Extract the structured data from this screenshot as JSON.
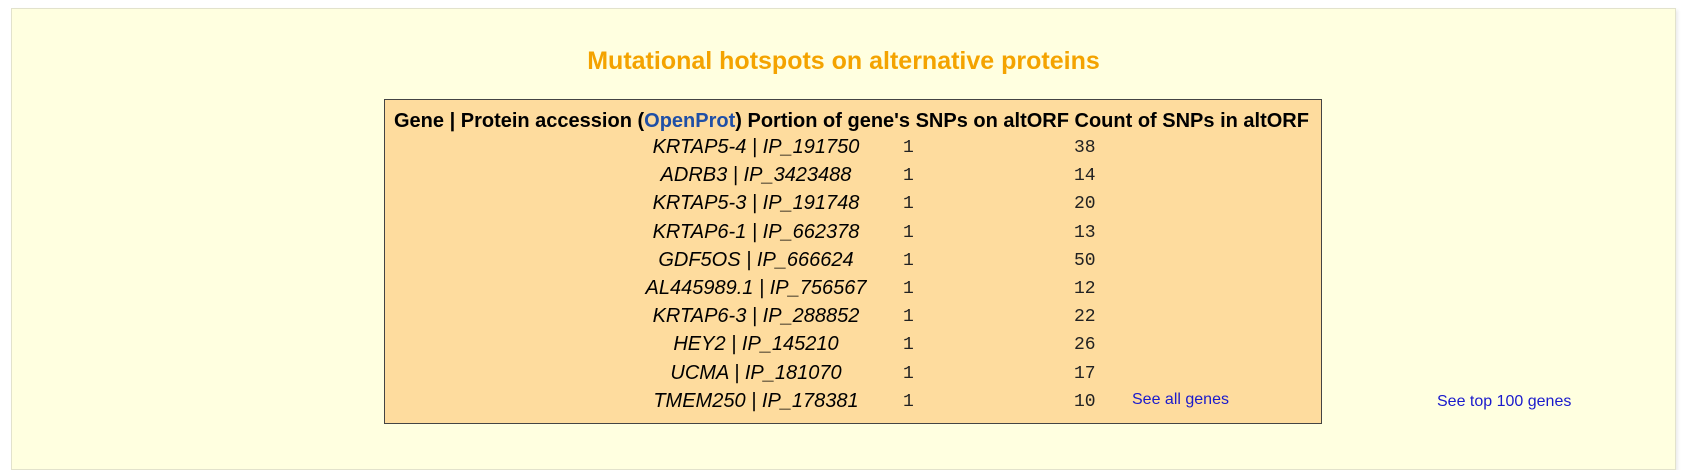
{
  "title": "Mutational hotspots on alternative proteins",
  "table": {
    "headers": {
      "col1_prefix": "Gene | Protein accession (",
      "col1_link": "OpenProt",
      "col1_suffix": ")",
      "col2": "Portion of gene's SNPs on altORF",
      "col3": "Count of SNPs in altORF"
    },
    "rows": [
      {
        "gene": "KRTAP5-4 | IP_191750",
        "portion": "1",
        "count": "38"
      },
      {
        "gene": "ADRB3 | IP_3423488",
        "portion": "1",
        "count": "14"
      },
      {
        "gene": "KRTAP5-3 | IP_191748",
        "portion": "1",
        "count": "20"
      },
      {
        "gene": "KRTAP6-1 | IP_662378",
        "portion": "1",
        "count": "13"
      },
      {
        "gene": "GDF5OS | IP_666624",
        "portion": "1",
        "count": "50"
      },
      {
        "gene": "AL445989.1 | IP_756567",
        "portion": "1",
        "count": "12"
      },
      {
        "gene": "KRTAP6-3 | IP_288852",
        "portion": "1",
        "count": "22"
      },
      {
        "gene": "HEY2 | IP_145210",
        "portion": "1",
        "count": "26"
      },
      {
        "gene": "UCMA | IP_181070",
        "portion": "1",
        "count": "17"
      },
      {
        "gene": "TMEM250 | IP_178381",
        "portion": "1",
        "count": "10"
      }
    ]
  },
  "links": {
    "see_all": "See all genes",
    "see_top": "See top 100 genes"
  },
  "colors": {
    "title": "#f4a300",
    "panel_bg": "#ffffe0",
    "table_bg": "#fedc9e",
    "link": "#1a1acc",
    "openprot_link": "#1f4fa6"
  }
}
